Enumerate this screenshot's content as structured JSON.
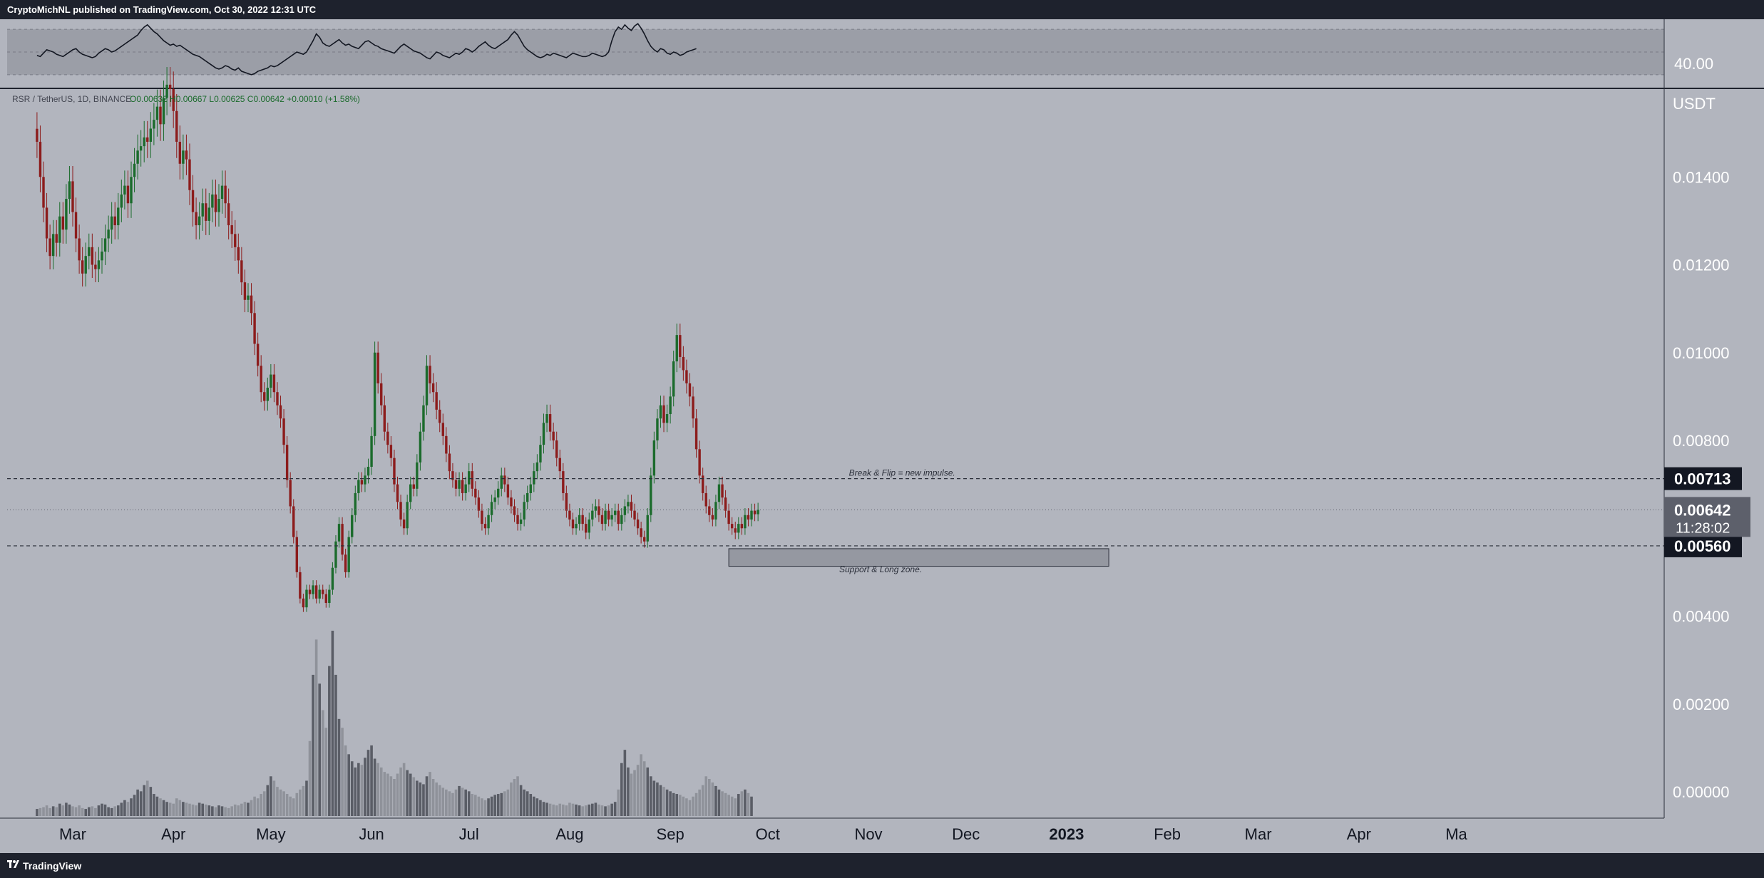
{
  "header": {
    "text": "CryptoMichNL published on TradingView.com, Oct 30, 2022 12:31 UTC"
  },
  "footer": {
    "brand": "TradingView"
  },
  "colors": {
    "background": "#b2b5be",
    "frame": "#1e222d",
    "up": "#1b6b2c",
    "down": "#8c1c1c",
    "rsi_line": "#131722",
    "volume_up": "#5a5d66",
    "volume_down": "#8f929a",
    "zone_fill": "#9598a1"
  },
  "rsi": {
    "level_label": "40.00",
    "bands": [
      70,
      50,
      30
    ],
    "values": [
      47,
      46,
      49,
      52,
      51,
      50,
      48,
      47,
      46,
      48,
      50,
      52,
      53,
      50,
      48,
      47,
      46,
      45,
      46,
      49,
      51,
      53,
      52,
      50,
      51,
      53,
      55,
      57,
      59,
      61,
      63,
      65,
      69,
      72,
      74,
      71,
      68,
      66,
      63,
      60,
      58,
      56,
      57,
      55,
      56,
      54,
      52,
      50,
      48,
      47,
      46,
      44,
      42,
      40,
      38,
      36,
      35,
      36,
      38,
      37,
      35,
      34,
      36,
      33,
      32,
      31,
      30,
      31,
      33,
      34,
      35,
      36,
      38,
      37,
      38,
      40,
      42,
      44,
      46,
      48,
      50,
      49,
      48,
      50,
      55,
      60,
      66,
      63,
      58,
      56,
      55,
      57,
      59,
      61,
      58,
      56,
      57,
      55,
      54,
      53,
      56,
      59,
      60,
      58,
      56,
      55,
      53,
      52,
      51,
      50,
      49,
      52,
      55,
      57,
      55,
      53,
      51,
      50,
      49,
      47,
      45,
      44,
      47,
      50,
      49,
      47,
      46,
      45,
      47,
      49,
      48,
      50,
      53,
      52,
      50,
      52,
      55,
      57,
      59,
      56,
      54,
      53,
      55,
      57,
      59,
      61,
      65,
      68,
      65,
      60,
      55,
      52,
      50,
      48,
      46,
      45,
      46,
      48,
      47,
      49,
      48,
      47,
      46,
      45,
      47,
      49,
      48,
      47,
      46,
      46,
      47,
      49,
      48,
      47,
      46,
      47,
      50,
      60,
      68,
      72,
      70,
      74,
      71,
      69,
      73,
      75,
      71,
      66,
      60,
      55,
      52,
      50,
      53,
      52,
      49,
      48,
      50,
      49,
      47,
      48,
      50,
      51,
      52,
      53
    ]
  },
  "chart_data": {
    "type": "candlestick",
    "symbol_info": "RSR / TetherUS, 1D, BINANCE",
    "ohlc_label": "O0.00632 H0.00667 L0.00625 C0.00642 +0.00010 (+1.58%)",
    "currency": "USDT",
    "ylim": [
      -0.0006,
      0.016
    ],
    "price_ticks": [
      "0.01400",
      "0.01200",
      "0.01000",
      "0.00800",
      "0.00400",
      "0.00200",
      "0.00000"
    ],
    "price_tick_values": [
      0.014,
      0.012,
      0.01,
      0.008,
      0.004,
      0.002,
      0.0
    ],
    "current_price": {
      "label": "0.00642",
      "countdown": "11:28:02",
      "value": 0.00642
    },
    "levels": [
      {
        "label": "0.00713",
        "value": 0.00713,
        "style": "dashed"
      },
      {
        "label": "0.00560",
        "value": 0.0056,
        "style": "dashed"
      }
    ],
    "support_zone": {
      "top": 0.0056,
      "bottom": 0.0052,
      "start_date": "2022-09-19",
      "end_date": "2023-01-14"
    },
    "annotations": [
      {
        "text": "Break & Flip = new impulse.",
        "price": 0.0072,
        "date": "2022-10-26"
      },
      {
        "text": "Support & Long zone.",
        "price": 0.005,
        "date": "2022-10-23"
      }
    ],
    "x_ticks": [
      "Mar",
      "Apr",
      "May",
      "Jun",
      "Jul",
      "Aug",
      "Sep",
      "Oct",
      "Nov",
      "Dec",
      "2023",
      "Feb",
      "Mar",
      "Apr",
      "Ma"
    ],
    "x_tick_dates": [
      "2022-03-01",
      "2022-04-01",
      "2022-05-01",
      "2022-06-01",
      "2022-07-01",
      "2022-08-01",
      "2022-09-01",
      "2022-10-01",
      "2022-11-01",
      "2022-12-01",
      "2023-01-01",
      "2023-02-01",
      "2023-03-01",
      "2023-04-01",
      "2023-05-01"
    ],
    "x_range": [
      "2022-02-18",
      "2023-05-01"
    ],
    "first_date": "2022-02-18",
    "closes": [
      0.0148,
      0.014,
      0.0133,
      0.0126,
      0.0122,
      0.0127,
      0.0125,
      0.0131,
      0.0128,
      0.0135,
      0.0139,
      0.0132,
      0.0126,
      0.0121,
      0.0118,
      0.0122,
      0.0124,
      0.012,
      0.0119,
      0.0121,
      0.0123,
      0.0126,
      0.0128,
      0.0131,
      0.0129,
      0.0133,
      0.0136,
      0.0138,
      0.0134,
      0.014,
      0.0143,
      0.0146,
      0.0147,
      0.0149,
      0.0148,
      0.0151,
      0.0153,
      0.0156,
      0.0152,
      0.0158,
      0.0161,
      0.016,
      0.0155,
      0.0148,
      0.0143,
      0.0146,
      0.0144,
      0.0137,
      0.0132,
      0.0129,
      0.0131,
      0.0134,
      0.013,
      0.0133,
      0.0136,
      0.0132,
      0.0135,
      0.0138,
      0.0134,
      0.0129,
      0.0127,
      0.0124,
      0.0121,
      0.0116,
      0.0112,
      0.0113,
      0.0109,
      0.0102,
      0.0097,
      0.0091,
      0.0089,
      0.0092,
      0.0095,
      0.0091,
      0.0088,
      0.0085,
      0.0079,
      0.0071,
      0.0065,
      0.0058,
      0.005,
      0.0044,
      0.0042,
      0.0046,
      0.0045,
      0.0047,
      0.0044,
      0.0046,
      0.0045,
      0.0043,
      0.0046,
      0.0051,
      0.0057,
      0.0061,
      0.0054,
      0.005,
      0.0058,
      0.0063,
      0.0068,
      0.0071,
      0.007,
      0.0072,
      0.0074,
      0.0081,
      0.01,
      0.0093,
      0.0088,
      0.0082,
      0.0079,
      0.0076,
      0.007,
      0.0066,
      0.0062,
      0.006,
      0.0066,
      0.007,
      0.0069,
      0.0075,
      0.0082,
      0.0088,
      0.0097,
      0.0093,
      0.0091,
      0.0087,
      0.0084,
      0.0081,
      0.0077,
      0.0073,
      0.0071,
      0.0069,
      0.0071,
      0.0068,
      0.007,
      0.0073,
      0.0069,
      0.0067,
      0.0064,
      0.0061,
      0.006,
      0.0063,
      0.0066,
      0.0067,
      0.0069,
      0.0072,
      0.007,
      0.0067,
      0.0065,
      0.0063,
      0.0061,
      0.0062,
      0.0066,
      0.0068,
      0.007,
      0.0073,
      0.0075,
      0.0079,
      0.0084,
      0.0086,
      0.0082,
      0.008,
      0.0076,
      0.0073,
      0.0068,
      0.0064,
      0.0062,
      0.006,
      0.0061,
      0.0063,
      0.0061,
      0.0059,
      0.0062,
      0.0064,
      0.0065,
      0.0063,
      0.0061,
      0.0064,
      0.0062,
      0.0063,
      0.0064,
      0.0061,
      0.0063,
      0.0065,
      0.0066,
      0.0064,
      0.0062,
      0.006,
      0.0058,
      0.0057,
      0.0063,
      0.0072,
      0.008,
      0.0085,
      0.0088,
      0.0084,
      0.0086,
      0.009,
      0.0098,
      0.0104,
      0.0099,
      0.0096,
      0.0093,
      0.009,
      0.0085,
      0.0078,
      0.0072,
      0.0068,
      0.0065,
      0.0063,
      0.0062,
      0.0066,
      0.007,
      0.0067,
      0.0064,
      0.0061,
      0.006,
      0.0059,
      0.0061,
      0.006,
      0.0063,
      0.0062,
      0.0064,
      0.00632,
      0.00642
    ],
    "volumes": [
      8,
      9,
      10,
      12,
      9,
      11,
      10,
      14,
      12,
      15,
      13,
      11,
      10,
      12,
      9,
      8,
      10,
      11,
      9,
      12,
      14,
      13,
      10,
      9,
      11,
      12,
      15,
      18,
      16,
      20,
      24,
      30,
      28,
      35,
      40,
      33,
      25,
      22,
      20,
      18,
      16,
      15,
      14,
      20,
      18,
      16,
      15,
      14,
      13,
      12,
      15,
      14,
      13,
      12,
      11,
      10,
      12,
      11,
      10,
      9,
      11,
      13,
      12,
      14,
      16,
      15,
      18,
      22,
      20,
      25,
      28,
      35,
      45,
      40,
      33,
      30,
      28,
      25,
      22,
      20,
      26,
      30,
      34,
      40,
      85,
      160,
      200,
      150,
      120,
      100,
      170,
      210,
      160,
      110,
      100,
      80,
      70,
      62,
      55,
      60,
      58,
      66,
      75,
      80,
      65,
      60,
      55,
      50,
      48,
      45,
      42,
      48,
      55,
      60,
      52,
      48,
      44,
      40,
      38,
      36,
      45,
      50,
      42,
      38,
      35,
      32,
      30,
      28,
      26,
      30,
      34,
      32,
      30,
      28,
      25,
      24,
      22,
      20,
      18,
      20,
      22,
      24,
      25,
      26,
      28,
      30,
      38,
      42,
      45,
      35,
      30,
      28,
      25,
      22,
      20,
      18,
      16,
      15,
      14,
      13,
      12,
      14,
      13,
      12,
      15,
      14,
      13,
      12,
      11,
      12,
      13,
      14,
      15,
      13,
      12,
      11,
      12,
      14,
      16,
      30,
      60,
      75,
      55,
      48,
      52,
      58,
      70,
      62,
      55,
      45,
      40,
      38,
      35,
      33,
      30,
      28,
      26,
      25,
      24,
      22,
      20,
      18,
      22,
      26,
      30,
      35,
      45,
      42,
      38,
      34,
      30,
      28,
      26,
      24,
      22,
      20,
      25,
      28,
      30,
      26,
      22
    ]
  }
}
